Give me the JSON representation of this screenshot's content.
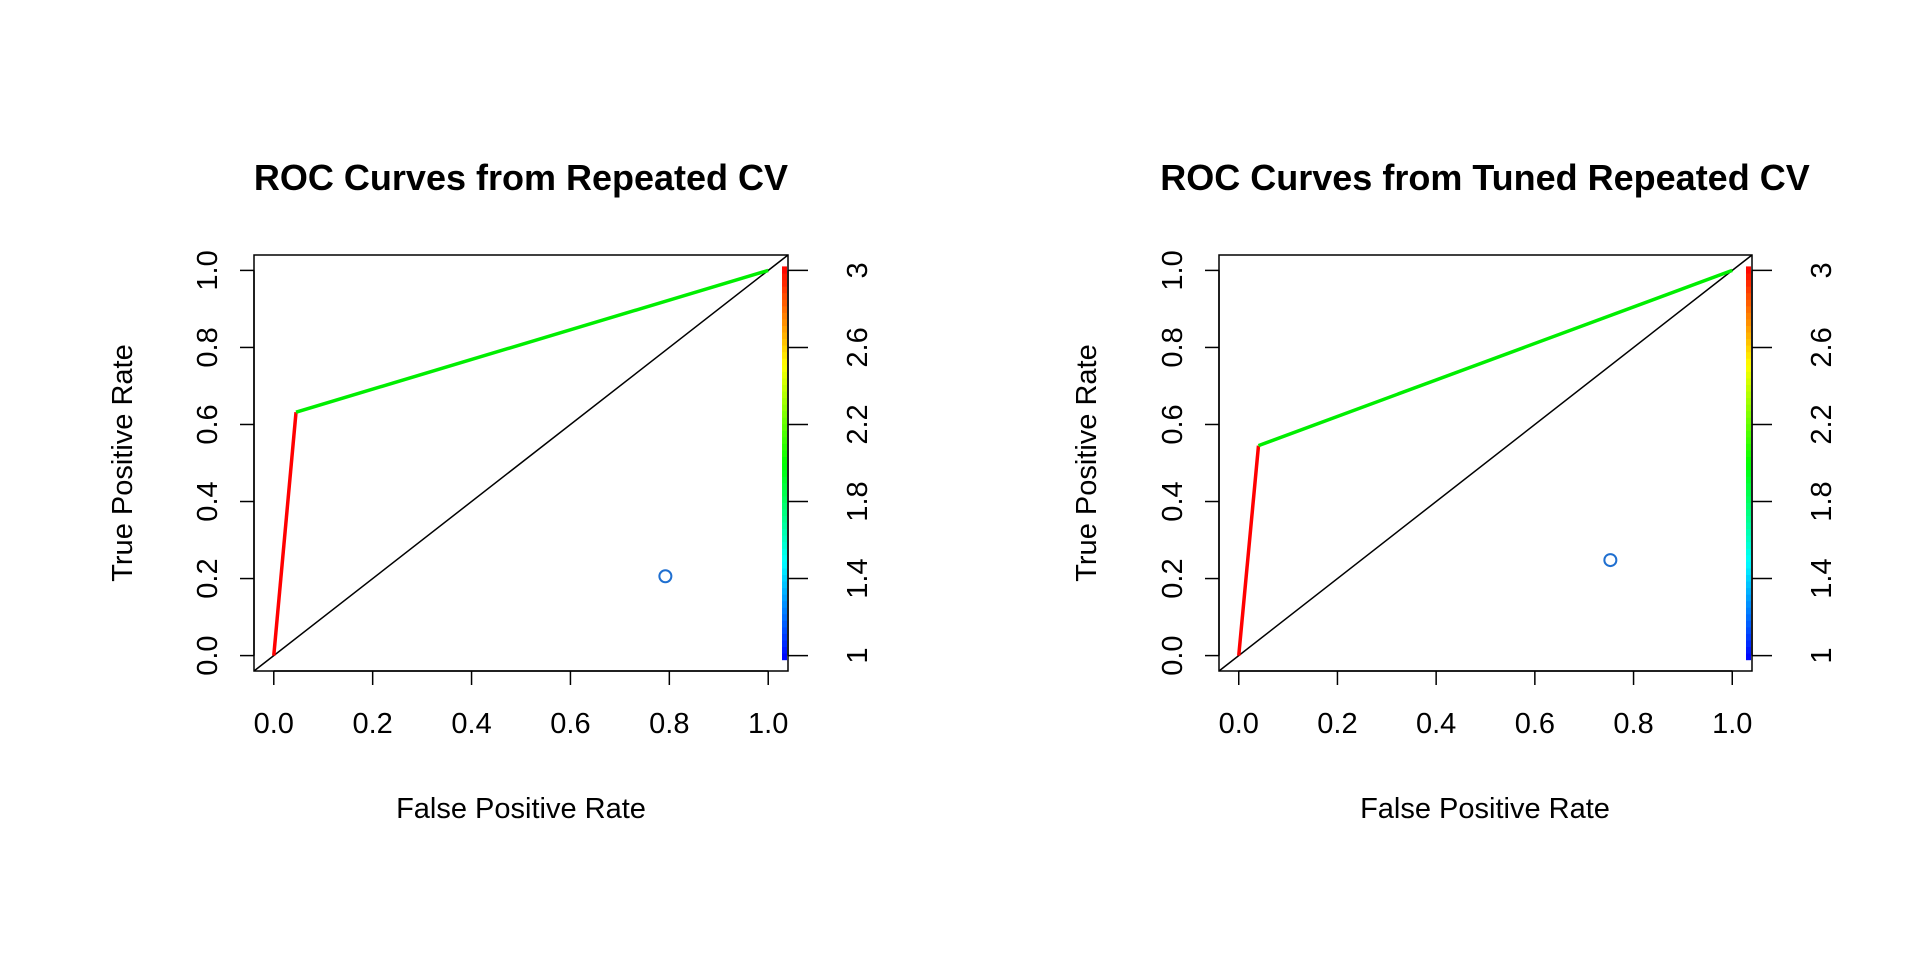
{
  "chart_data": [
    {
      "type": "line",
      "title": "ROC Curves from Repeated CV",
      "xlabel": "False Positive Rate",
      "ylabel": "True Positive Rate",
      "xlim": [
        0,
        1
      ],
      "ylim": [
        0,
        1
      ],
      "x_ticks": [
        "0.0",
        "0.2",
        "0.4",
        "0.6",
        "0.8",
        "1.0"
      ],
      "y_ticks": [
        "0.0",
        "0.2",
        "0.4",
        "0.6",
        "0.8",
        "1.0"
      ],
      "colorbar": {
        "range": [
          1,
          3
        ],
        "ticks": [
          "1",
          "1.4",
          "1.8",
          "2.2",
          "2.6",
          "3"
        ],
        "colormap": "rainbow"
      },
      "roc_points": [
        [
          0,
          0
        ],
        [
          0.045,
          0.632
        ],
        [
          1,
          1
        ]
      ],
      "segment_colors": [
        "#ff0000",
        "#00ee00"
      ],
      "diagonal": [
        [
          0,
          0
        ],
        [
          1,
          1
        ]
      ],
      "point_marker": {
        "x": 0.792,
        "y": 0.206,
        "color": "#1f6fd0"
      },
      "grid": false
    },
    {
      "type": "line",
      "title": "ROC Curves from Tuned Repeated CV",
      "xlabel": "False Positive Rate",
      "ylabel": "True Positive Rate",
      "xlim": [
        0,
        1
      ],
      "ylim": [
        0,
        1
      ],
      "x_ticks": [
        "0.0",
        "0.2",
        "0.4",
        "0.6",
        "0.8",
        "1.0"
      ],
      "y_ticks": [
        "0.0",
        "0.2",
        "0.4",
        "0.6",
        "0.8",
        "1.0"
      ],
      "colorbar": {
        "range": [
          1,
          3
        ],
        "ticks": [
          "1",
          "1.4",
          "1.8",
          "2.2",
          "2.6",
          "3"
        ],
        "colormap": "rainbow"
      },
      "roc_points": [
        [
          0,
          0
        ],
        [
          0.04,
          0.545
        ],
        [
          1,
          1
        ]
      ],
      "segment_colors": [
        "#ff0000",
        "#00ee00"
      ],
      "diagonal": [
        [
          0,
          0
        ],
        [
          1,
          1
        ]
      ],
      "point_marker": {
        "x": 0.753,
        "y": 0.248,
        "color": "#1f6fd0"
      },
      "grid": false
    }
  ]
}
